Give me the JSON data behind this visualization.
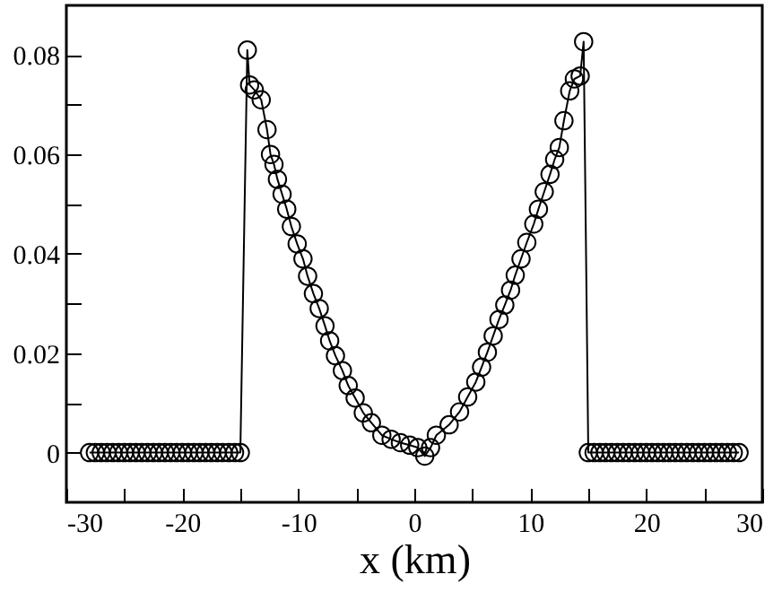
{
  "chart_data": {
    "type": "line",
    "xlabel": "x (km)",
    "marker": "circle",
    "line_style": "solid",
    "grid": false,
    "xlim": [
      -30,
      30
    ],
    "ylim": [
      -0.01,
      0.09
    ],
    "xticks": [
      -30,
      {
        "value": -25,
        "label": null
      },
      -20,
      {
        "value": -15,
        "label": null
      },
      -10,
      {
        "value": -5,
        "label": null
      },
      0,
      {
        "value": 5,
        "label": null
      },
      10,
      {
        "value": 15,
        "label": null
      },
      20,
      {
        "value": 25,
        "label": null
      },
      30
    ],
    "yticks": [
      0,
      {
        "value": 0.01,
        "label": null
      },
      0.02,
      {
        "value": 0.03,
        "label": null
      },
      0.04,
      {
        "value": 0.05,
        "label": null
      },
      0.06,
      {
        "value": 0.07,
        "label": null
      },
      0.08
    ],
    "series": [
      {
        "color": "#000000",
        "x": [
          -28,
          -27.5,
          -27,
          -26.5,
          -26,
          -25.5,
          -25,
          -24.5,
          -24,
          -23.5,
          -23,
          -22.5,
          -22,
          -21.5,
          -21,
          -20.5,
          -20,
          -19.5,
          -19,
          -18.5,
          -18,
          -17.5,
          -17,
          -16.5,
          -16,
          -15.5,
          -15,
          -14.4,
          -14.2,
          -13.8,
          -13.2,
          -12.7,
          -12.4,
          -12.1,
          -11.8,
          -11.4,
          -11.0,
          -10.6,
          -10.1,
          -9.6,
          -9.2,
          -8.7,
          -8.2,
          -7.7,
          -7.3,
          -6.8,
          -6.2,
          -5.7,
          -5.1,
          -4.4,
          -3.7,
          -2.8,
          -2.0,
          -1.2,
          -0.4,
          0.3,
          0.9,
          1.4,
          1.9,
          3.0,
          3.9,
          4.6,
          5.3,
          5.8,
          6.3,
          6.8,
          7.3,
          7.8,
          8.3,
          8.7,
          9.2,
          9.7,
          10.3,
          10.7,
          11.2,
          11.7,
          12.1,
          12.5,
          12.9,
          13.4,
          13.8,
          14.3,
          14.6,
          15,
          15.5,
          16,
          16.5,
          17,
          17.5,
          18,
          18.5,
          19,
          19.5,
          20,
          20.5,
          21,
          21.5,
          22,
          22.5,
          23,
          23.5,
          24,
          24.5,
          25,
          25.5,
          26,
          26.5,
          27,
          27.5,
          28
        ],
        "values": [
          0,
          0,
          0,
          0,
          0,
          0,
          0,
          0,
          0,
          0,
          0,
          0,
          0,
          0,
          0,
          0,
          0,
          0,
          0,
          0,
          0,
          0,
          0,
          0,
          0,
          0,
          0,
          0.081,
          0.074,
          0.073,
          0.071,
          0.065,
          0.06,
          0.058,
          0.055,
          0.052,
          0.049,
          0.0455,
          0.042,
          0.039,
          0.0355,
          0.032,
          0.029,
          0.0255,
          0.0225,
          0.0195,
          0.0165,
          0.0135,
          0.011,
          0.008,
          0.006,
          0.0035,
          0.0027,
          0.002,
          0.0015,
          0.001,
          -0.0007,
          0.001,
          0.0035,
          0.0056,
          0.0082,
          0.0112,
          0.0142,
          0.0172,
          0.0202,
          0.0235,
          0.0268,
          0.0297,
          0.0327,
          0.0357,
          0.039,
          0.0423,
          0.046,
          0.049,
          0.0525,
          0.056,
          0.059,
          0.0614,
          0.0668,
          0.0728,
          0.0752,
          0.0758,
          0.0827,
          0,
          0,
          0,
          0,
          0,
          0,
          0,
          0,
          0,
          0,
          0,
          0,
          0,
          0,
          0,
          0,
          0,
          0,
          0,
          0,
          0,
          0,
          0,
          0,
          0,
          0,
          0
        ]
      }
    ]
  }
}
